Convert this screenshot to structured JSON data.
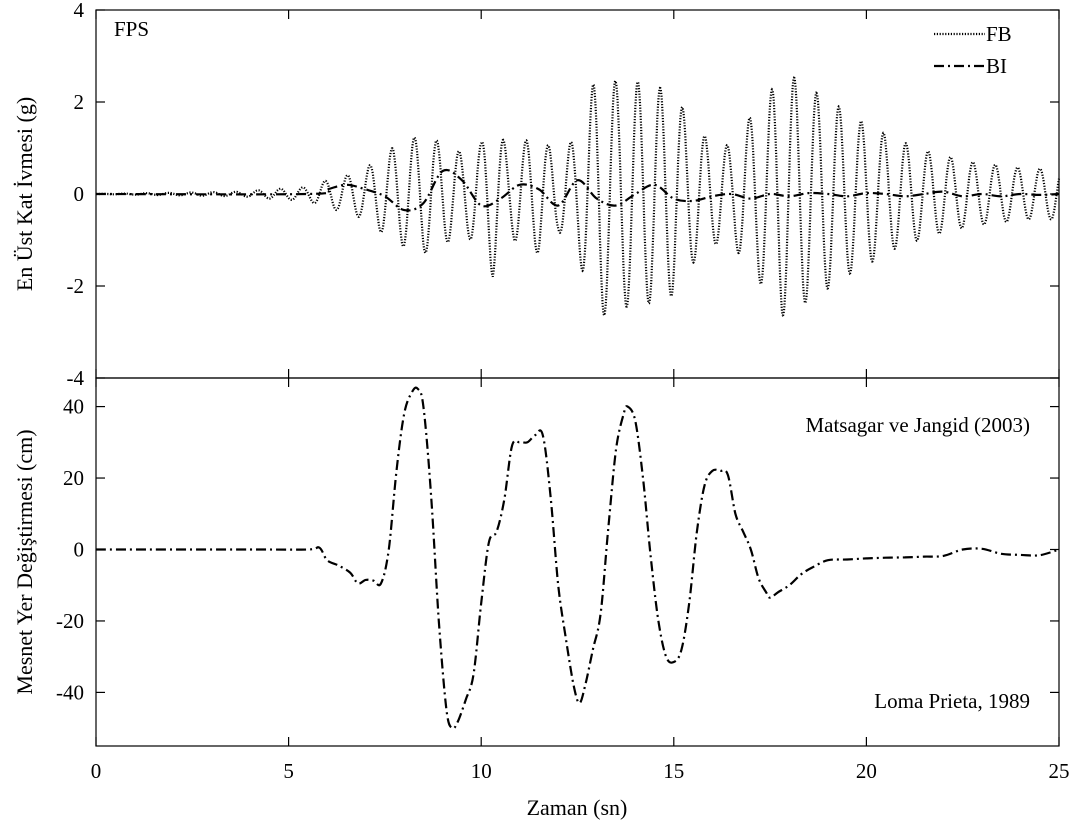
{
  "figure": {
    "xlabel": "Zaman (sn)",
    "top_annotation": "FPS",
    "bottom_annotation_1": "Matsagar ve Jangid (2003)",
    "bottom_annotation_2": "Loma Prieta, 1989"
  },
  "chart_data": [
    {
      "type": "line",
      "title": "",
      "xlabel": "",
      "ylabel": "En Üst Kat İvmesi (g)",
      "xlim": [
        0,
        25
      ],
      "ylim": [
        -4,
        4
      ],
      "yticks": [
        -4,
        -2,
        0,
        2,
        4
      ],
      "ytick_labels": [
        "-4",
        "-2",
        "0",
        "2",
        "4"
      ],
      "legend_position": "top-right",
      "series": [
        {
          "name": "FB",
          "style": "dotted",
          "envelope": {
            "x": [
              0,
              3.8,
              4.5,
              5.5,
              6.0,
              6.5,
              7.0,
              7.5,
              8.0,
              8.5,
              9.0,
              9.5,
              10.0,
              10.3,
              10.7,
              11.0,
              11.5,
              12.0,
              12.5,
              12.8,
              13.1,
              13.5,
              14.0,
              14.5,
              15.0,
              15.5,
              16.0,
              16.5,
              17.0,
              17.5,
              17.8,
              18.2,
              18.7,
              19.2,
              19.7,
              20.2,
              20.7,
              21.2,
              21.7,
              22.2,
              22.7,
              23.2,
              23.7,
              24.2,
              25.0
            ],
            "amplitude": [
              0,
              0.05,
              0.1,
              0.15,
              0.3,
              0.4,
              0.55,
              0.9,
              1.15,
              1.3,
              1.1,
              0.9,
              1.1,
              1.8,
              0.9,
              1.1,
              1.3,
              0.8,
              1.3,
              2.2,
              2.7,
              2.45,
              2.45,
              2.35,
              2.2,
              1.5,
              1.1,
              1.05,
              1.7,
              2.2,
              2.65,
              2.5,
              2.2,
              1.95,
              1.65,
              1.45,
              1.2,
              1.05,
              0.9,
              0.8,
              0.7,
              0.65,
              0.6,
              0.55,
              0.55
            ]
          },
          "dominant_period_s": 0.58
        },
        {
          "name": "BI",
          "style": "dash-dot",
          "x": [
            0,
            5.5,
            6.0,
            6.5,
            7.0,
            7.5,
            8.0,
            8.5,
            9.0,
            9.5,
            10.0,
            10.5,
            11.0,
            11.5,
            12.0,
            12.5,
            13.0,
            13.5,
            14.0,
            14.5,
            15.0,
            15.5,
            16.0,
            16.5,
            17.0,
            17.5,
            18.0,
            18.5,
            19.0,
            19.5,
            20.0,
            20.5,
            21.0,
            21.5,
            22.0,
            22.5,
            23.0,
            23.5,
            24.0,
            24.5,
            25.0
          ],
          "y": [
            0,
            0,
            0.1,
            0.2,
            0.1,
            -0.05,
            -0.35,
            -0.2,
            0.5,
            0.3,
            -0.25,
            -0.1,
            0.2,
            0.1,
            -0.25,
            0.3,
            -0.1,
            -0.25,
            0.0,
            0.2,
            -0.1,
            -0.15,
            -0.05,
            0.0,
            -0.1,
            0.0,
            -0.05,
            0.02,
            0.0,
            -0.05,
            0.02,
            0.0,
            -0.05,
            0.0,
            0.05,
            -0.05,
            0.0,
            -0.05,
            0.0,
            -0.02,
            0.0
          ]
        }
      ]
    },
    {
      "type": "line",
      "title": "",
      "xlabel": "Zaman (sn)",
      "ylabel": "Mesnet Yer Değiştirmesi (cm)",
      "xlim": [
        0,
        25
      ],
      "ylim": [
        -55,
        48
      ],
      "xticks": [
        0,
        5,
        10,
        15,
        20,
        25
      ],
      "xtick_labels": [
        "0",
        "5",
        "10",
        "15",
        "20",
        "25"
      ],
      "yticks": [
        -40,
        -20,
        0,
        20,
        40
      ],
      "ytick_labels": [
        "-40",
        "-20",
        "0",
        "20",
        "40"
      ],
      "series": [
        {
          "name": "",
          "style": "dash-dot",
          "x": [
            0,
            4.0,
            5.5,
            5.8,
            6.0,
            6.3,
            6.6,
            6.8,
            7.0,
            7.2,
            7.4,
            7.6,
            7.8,
            8.0,
            8.2,
            8.35,
            8.5,
            8.7,
            8.9,
            9.1,
            9.25,
            9.4,
            9.6,
            9.8,
            10.0,
            10.2,
            10.4,
            10.6,
            10.8,
            11.0,
            11.2,
            11.4,
            11.6,
            11.8,
            12.0,
            12.2,
            12.4,
            12.55,
            12.7,
            12.9,
            13.1,
            13.3,
            13.5,
            13.7,
            13.8,
            14.0,
            14.2,
            14.4,
            14.6,
            14.8,
            15.0,
            15.2,
            15.4,
            15.6,
            15.8,
            16.0,
            16.2,
            16.4,
            16.6,
            16.8,
            17.0,
            17.2,
            17.4,
            17.5,
            17.7,
            18.0,
            18.3,
            18.6,
            19.0,
            19.5,
            20.0,
            20.5,
            21.0,
            21.5,
            22.0,
            22.5,
            23.0,
            23.5,
            24.0,
            24.5,
            25.0
          ],
          "y": [
            0,
            0,
            0,
            0.5,
            -3,
            -4.5,
            -6.5,
            -9.5,
            -8.5,
            -8.7,
            -9.5,
            0,
            22,
            38,
            44,
            45,
            40,
            15,
            -20,
            -45,
            -50,
            -48,
            -42,
            -35,
            -15,
            2,
            5,
            14,
            29,
            30,
            30,
            32,
            32,
            15,
            -10,
            -25,
            -38,
            -43,
            -38,
            -28,
            -18,
            6,
            28,
            38,
            40,
            36,
            20,
            -2,
            -20,
            -30,
            -31.5,
            -28,
            -15,
            5,
            18,
            22,
            22,
            21,
            10,
            5,
            0,
            -8,
            -12,
            -13.5,
            -12,
            -10,
            -7,
            -5,
            -3,
            -2.8,
            -2.5,
            -2.3,
            -2.2,
            -2,
            -1.8,
            0,
            0.2,
            -1.2,
            -1.5,
            -1.6,
            0
          ]
        }
      ]
    }
  ]
}
